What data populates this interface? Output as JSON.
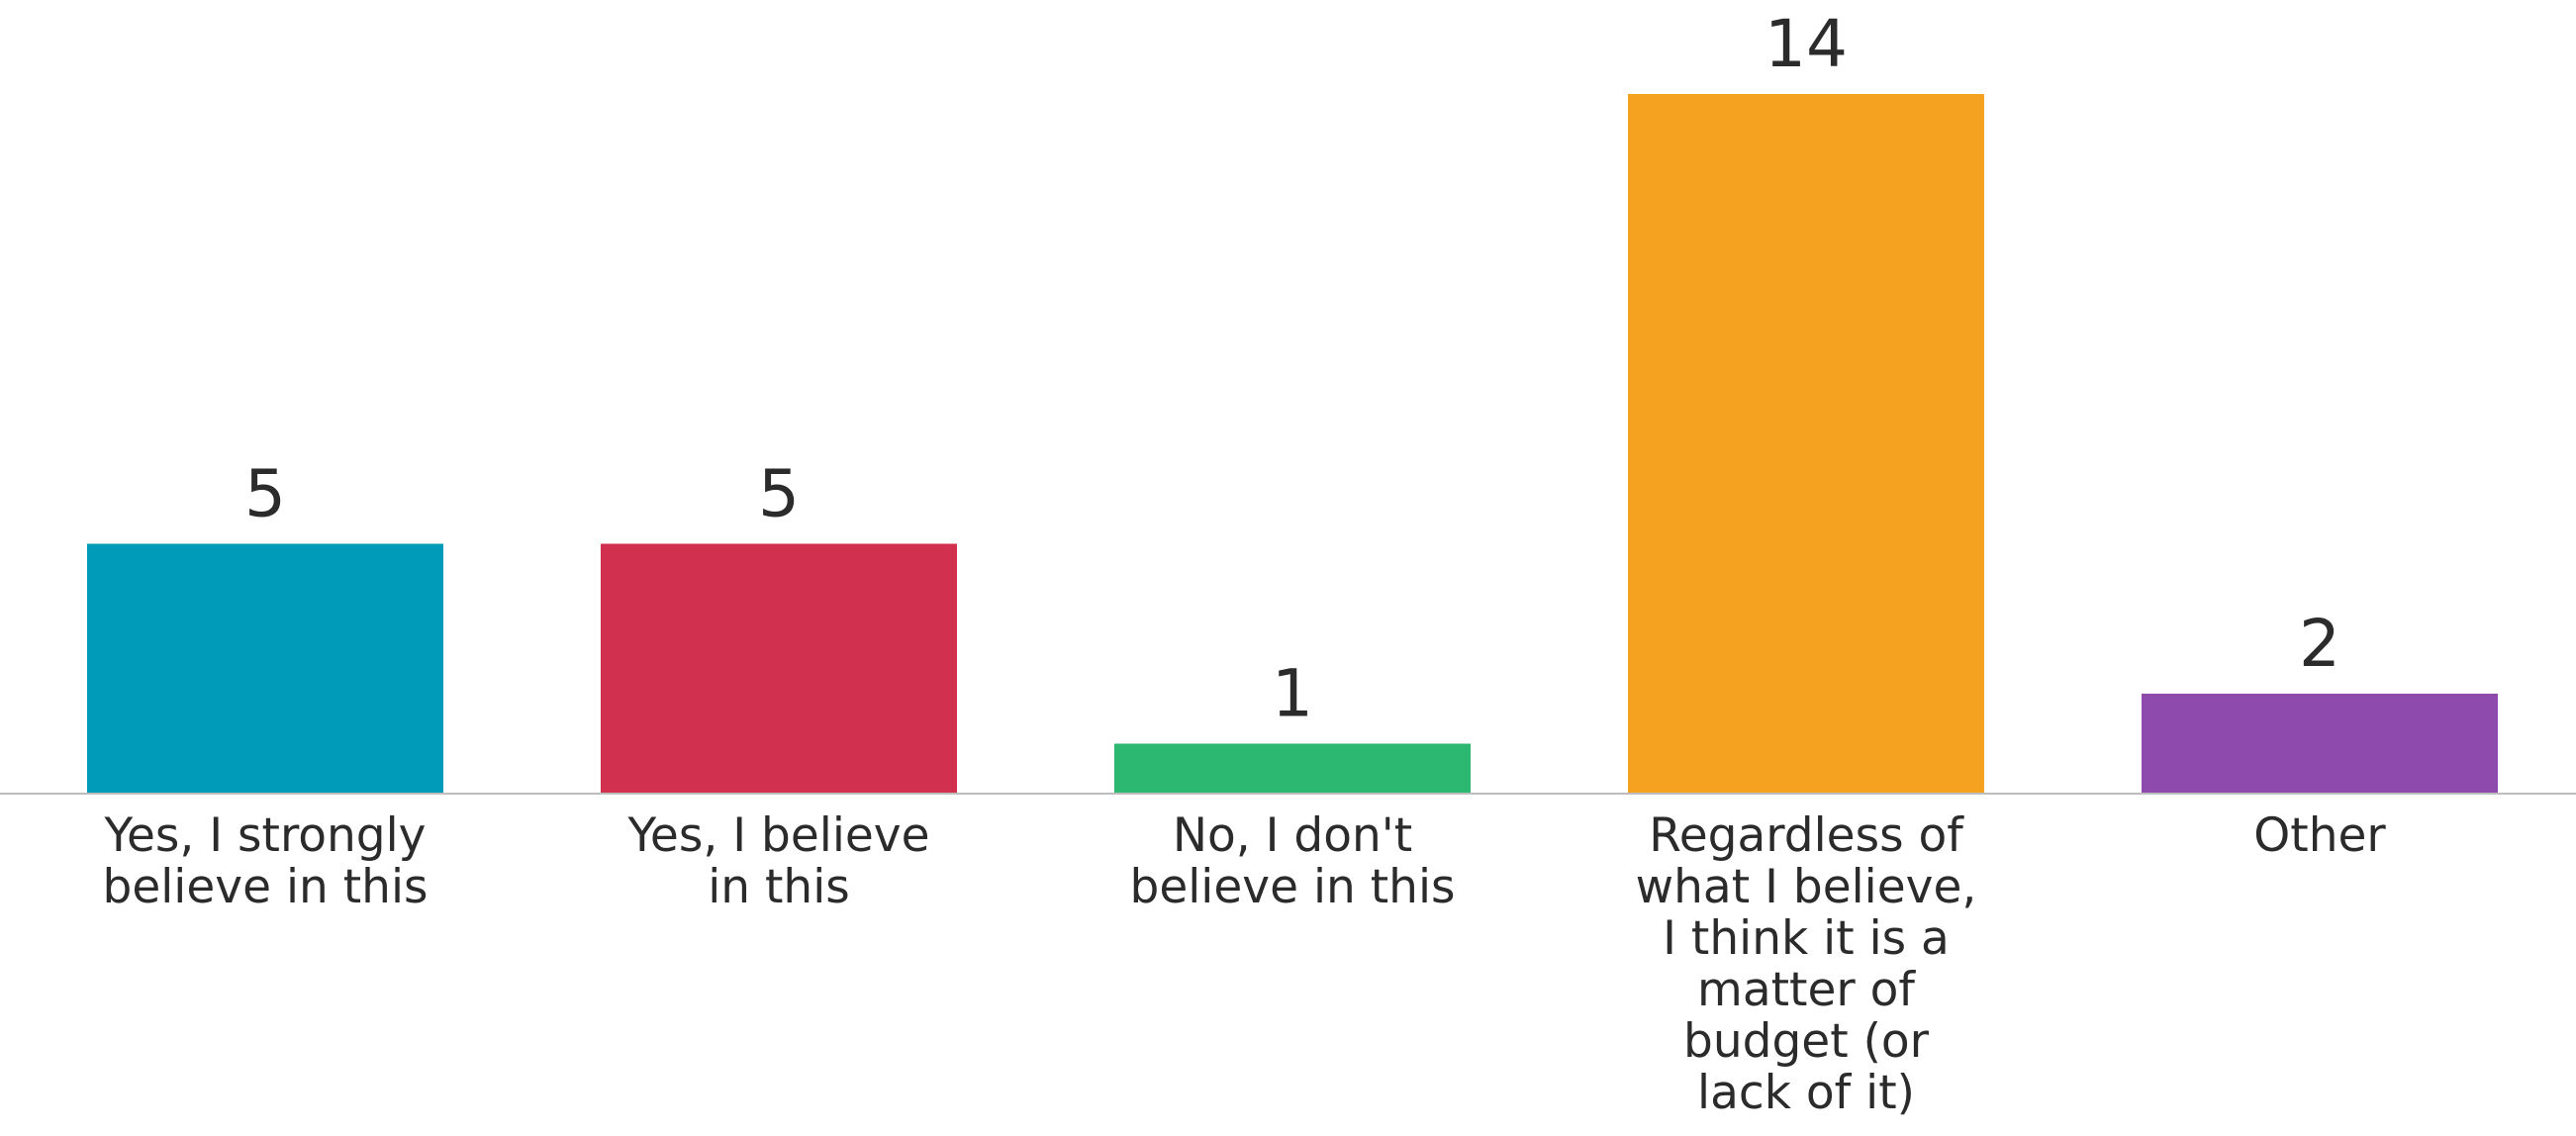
{
  "chart_data": {
    "type": "bar",
    "categories": [
      [
        "Yes, I strongly",
        "believe in this"
      ],
      [
        "Yes, I believe",
        "in this"
      ],
      [
        "No, I don't",
        "believe in this"
      ],
      [
        "Regardless of",
        "what I believe,",
        "I think it is a",
        "matter of",
        "budget (or",
        "lack of it)"
      ],
      [
        "Other"
      ]
    ],
    "values": [
      5,
      5,
      1,
      14,
      2
    ],
    "colors": [
      "#009BB9",
      "#D1314E",
      "#2DB871",
      "#F4A21F",
      "#8E4BAD"
    ],
    "ylim": [
      0,
      14
    ],
    "title": "",
    "xlabel": "",
    "ylabel": "",
    "grid": false,
    "legend": "none",
    "data_labels": true
  }
}
